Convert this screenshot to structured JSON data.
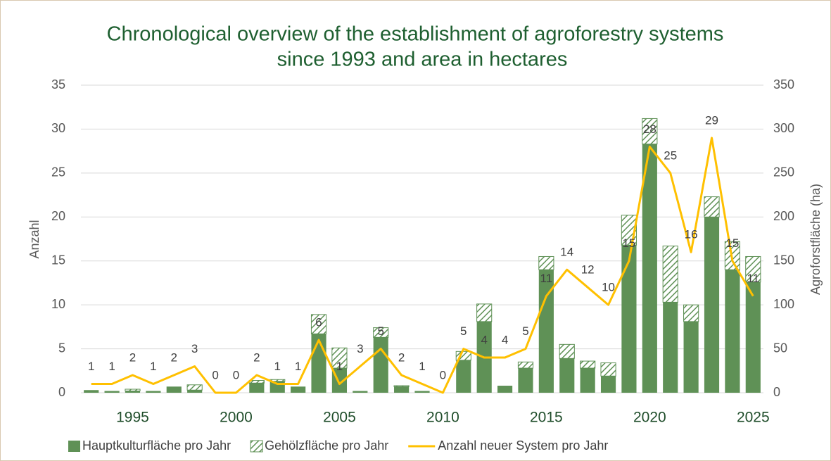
{
  "chart_data": {
    "type": "combo",
    "title": "Chronological overview of the establishment of agroforestry systems",
    "subtitle": "since 1993 and area in hectares",
    "y_label": "Anzahl",
    "y2_label": "Agroforstfläche (ha)",
    "categories": [
      null,
      null,
      "1995",
      null,
      null,
      null,
      null,
      "2000",
      null,
      null,
      null,
      null,
      "2005",
      null,
      null,
      null,
      null,
      "2010",
      null,
      null,
      null,
      null,
      "2015",
      null,
      null,
      null,
      null,
      "2020",
      null,
      null,
      null,
      null,
      "2025"
    ],
    "ylim": [
      0,
      35
    ],
    "yticks": [
      0,
      5,
      10,
      15,
      20,
      25,
      30,
      35
    ],
    "y2lim": [
      0,
      350
    ],
    "y2ticks": [
      0,
      50,
      100,
      150,
      200,
      250,
      300,
      350
    ],
    "grid": true,
    "legend": "bottom",
    "series": [
      {
        "name": "Hauptkulturfläche pro Jahr",
        "type": "bar",
        "axis": "y2",
        "color": "#5f9156",
        "values": [
          3,
          2,
          2,
          2,
          7,
          3,
          0,
          0,
          11,
          13,
          7,
          67,
          28,
          2,
          63,
          7,
          2,
          0,
          37,
          81,
          8,
          28,
          140,
          39,
          28,
          19,
          168,
          283,
          103,
          81,
          200,
          140,
          126
        ]
      },
      {
        "name": "Gehölzfläche pro Jahr",
        "type": "bar",
        "axis": "y2",
        "color": "#5f9156",
        "hatch": true,
        "values": [
          0,
          0,
          2,
          0,
          0,
          6,
          0,
          0,
          3,
          2,
          0,
          22,
          23,
          0,
          11,
          1,
          0,
          0,
          10,
          20,
          0,
          7,
          15,
          16,
          8,
          15,
          34,
          29,
          64,
          19,
          23,
          32,
          29
        ]
      },
      {
        "name": "Anzahl neuer System pro Jahr",
        "type": "line",
        "axis": "y",
        "color": "#ffc000",
        "values": [
          1,
          1,
          2,
          1,
          2,
          3,
          0,
          0,
          2,
          1,
          1,
          6,
          1,
          3,
          5,
          2,
          1,
          0,
          5,
          4,
          4,
          5,
          11,
          14,
          12,
          10,
          15,
          28,
          25,
          16,
          29,
          15,
          11
        ]
      }
    ]
  }
}
